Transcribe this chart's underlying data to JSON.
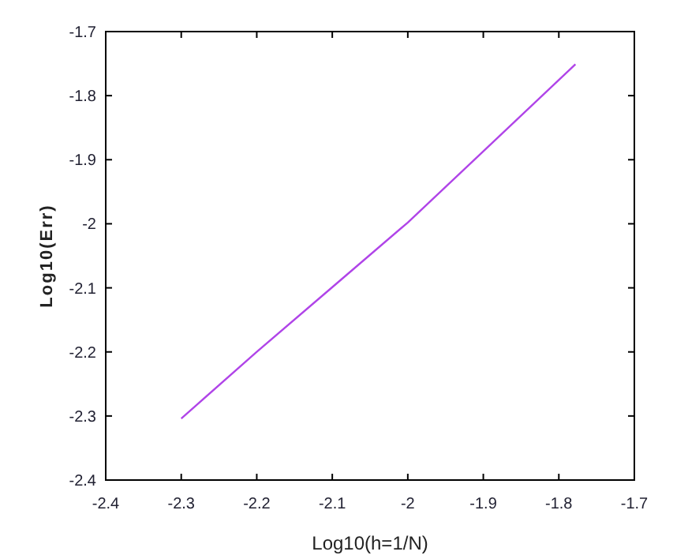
{
  "chart_data": {
    "type": "line",
    "xlabel": "Log10(h=1/N)",
    "ylabel": "Log10(Err)",
    "x": [
      -2.3,
      -2.2,
      -2.1,
      -2.0,
      -1.9,
      -1.778
    ],
    "series": [
      {
        "color": "#b044e8",
        "values": [
          -2.304,
          -2.2,
          -2.099,
          -1.998,
          -1.887,
          -1.751
        ]
      }
    ],
    "xlim": [
      -2.4,
      -1.7
    ],
    "xticks": [
      -2.4,
      -2.3,
      -2.2,
      -2.1,
      -2,
      -1.9,
      -1.8,
      -1.7
    ],
    "ylim": [
      -2.4,
      -1.7
    ],
    "yticks": [
      -2.4,
      -2.3,
      -2.2,
      -2.1,
      -2,
      -1.9,
      -1.8,
      -1.7
    ],
    "grid": false,
    "marker": "none",
    "line_style": "solid"
  }
}
